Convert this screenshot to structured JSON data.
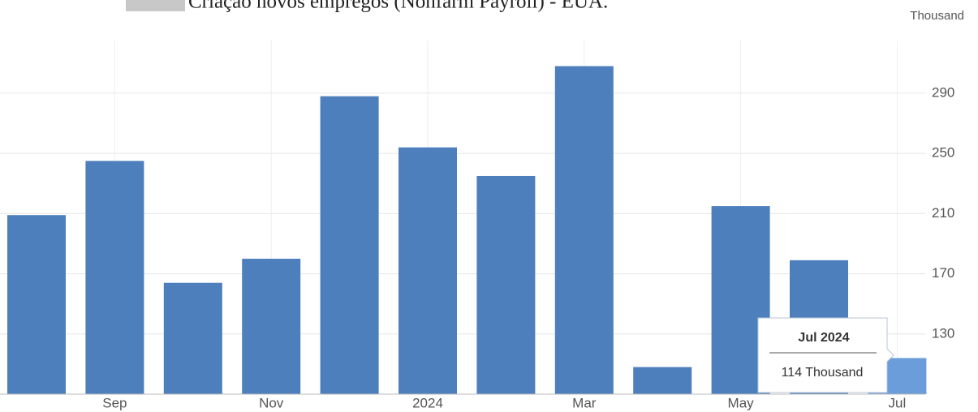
{
  "chart_data": {
    "type": "bar",
    "title": "Criação novos empregos (Nonfarm Payroll) - EUA.",
    "unit": "Thousand",
    "categories": [
      null,
      "Sep",
      null,
      "Nov",
      null,
      "2024",
      null,
      "Mar",
      null,
      "May",
      null,
      "Jul"
    ],
    "values": [
      209,
      245,
      164,
      180,
      288,
      254,
      235,
      308,
      108,
      215,
      179,
      114
    ],
    "colors": [
      "#4d7fbd",
      "#4d7fbd",
      "#4d7fbd",
      "#4d7fbd",
      "#4d7fbd",
      "#4d7fbd",
      "#4d7fbd",
      "#4d7fbd",
      "#4d7fbd",
      "#4d7fbd",
      "#4d7fbd",
      "#6a9dda"
    ],
    "ylim": [
      90,
      325
    ],
    "yticks": [
      130,
      170,
      210,
      250,
      290
    ],
    "y_axis_side": "right",
    "grid": true,
    "tooltip": {
      "title": "Jul 2024",
      "text": "114 Thousand"
    }
  }
}
